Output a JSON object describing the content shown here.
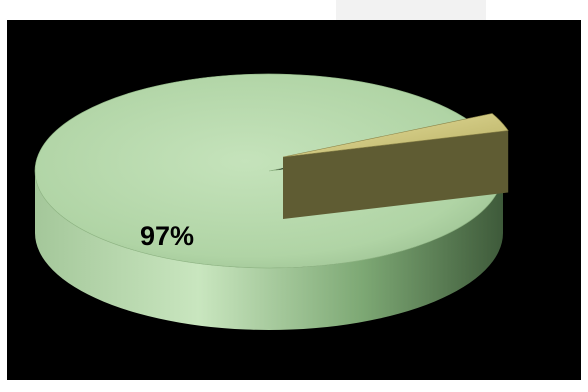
{
  "chart_data": {
    "type": "pie",
    "style": "3d-exploded",
    "slices": [
      {
        "value": 97,
        "label": "97%",
        "color": "#b7d9ad"
      },
      {
        "value": 3,
        "label": "",
        "color": "#d6cf88"
      }
    ],
    "background": "#000000",
    "legend": "none"
  }
}
